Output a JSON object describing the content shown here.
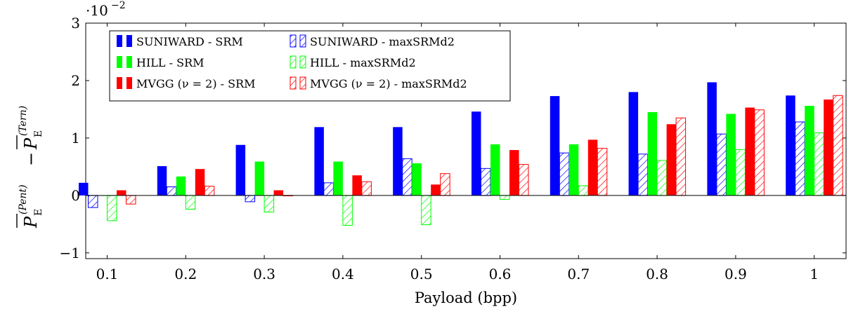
{
  "chart_data": {
    "type": "bar",
    "categories": [
      "0.1",
      "0.2",
      "0.3",
      "0.4",
      "0.5",
      "0.6",
      "0.7",
      "0.8",
      "0.9",
      "1"
    ],
    "xlabel": "Payload (bpp)",
    "ylabel": "P̄_E^(Pent) − P̄_E^(Tern)",
    "ylabel_parts": {
      "symbol": "P",
      "sub": "E",
      "sup_pent": "(Pent)",
      "sup_tern": "(Tern)",
      "minus": "−"
    },
    "scale_label": {
      "base": "·10",
      "exp": "−2"
    },
    "ylim": [
      -1.1,
      3.0
    ],
    "yticks": [
      -1,
      0,
      1,
      2,
      3
    ],
    "ytick_labels": [
      "−1",
      "0",
      "1",
      "2",
      "3"
    ],
    "grid": false,
    "legend_position": "top-left",
    "series": [
      {
        "name": "SUNIWARD - SRM",
        "color": "#0000ff",
        "pattern": "solid",
        "values": [
          0.22,
          0.51,
          0.88,
          1.19,
          1.19,
          1.46,
          1.73,
          1.8,
          1.97,
          1.74
        ]
      },
      {
        "name": "SUNIWARD - maxSRMd2",
        "color": "#0000ff",
        "pattern": "hatch",
        "values": [
          -0.21,
          0.15,
          -0.11,
          0.22,
          0.64,
          0.47,
          0.74,
          0.72,
          1.07,
          1.28
        ]
      },
      {
        "name": "HILL - SRM",
        "color": "#00ff00",
        "pattern": "solid",
        "values": [
          0.0,
          0.33,
          0.59,
          0.59,
          0.56,
          0.89,
          0.89,
          1.45,
          1.42,
          1.56
        ]
      },
      {
        "name": "HILL - maxSRMd2",
        "color": "#00ff00",
        "pattern": "hatch",
        "values": [
          -0.44,
          -0.24,
          -0.29,
          -0.52,
          -0.51,
          -0.07,
          0.17,
          0.61,
          0.8,
          1.09
        ]
      },
      {
        "name": "MVGG (ν = 2) - SRM",
        "color": "#ff0000",
        "pattern": "solid",
        "values": [
          0.09,
          0.46,
          0.09,
          0.35,
          0.19,
          0.79,
          0.97,
          1.24,
          1.53,
          1.67
        ]
      },
      {
        "name": "MVGG (ν = 2) - maxSRMd2",
        "color": "#ff0000",
        "pattern": "hatch",
        "values": [
          -0.15,
          0.16,
          0.0,
          0.24,
          0.38,
          0.54,
          0.82,
          1.35,
          1.49,
          1.74
        ]
      }
    ]
  }
}
